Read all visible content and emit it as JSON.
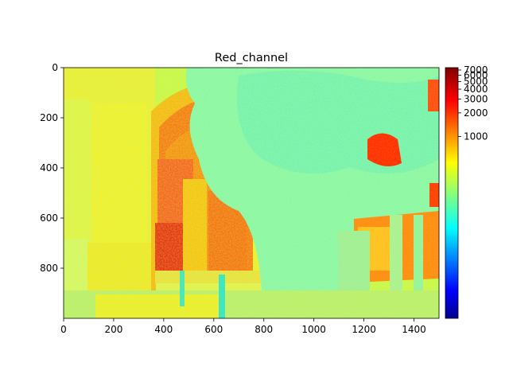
{
  "chart_data": {
    "type": "heatmap",
    "title": "Red_channel",
    "colormap": "jet",
    "image_width": 1500,
    "image_height": 1000,
    "x_ticks": [
      0,
      200,
      400,
      600,
      800,
      1000,
      1200,
      1400
    ],
    "y_ticks": [
      0,
      200,
      400,
      600,
      800
    ],
    "xlim": [
      0,
      1500
    ],
    "ylim": [
      1000,
      0
    ],
    "colorbar": {
      "scale": "log",
      "ticks": [
        1000,
        2000,
        3000,
        4000,
        5000,
        6000,
        7000
      ],
      "range": [
        0,
        7500
      ]
    }
  },
  "colors": {
    "scene_base": "#c8ff3a",
    "yellow_wall": "#f3f020",
    "orange_arch": "#ff6a00",
    "red_hot": "#dd1100",
    "foliage": "#7dffa0",
    "cyan": "#3fffe0"
  }
}
